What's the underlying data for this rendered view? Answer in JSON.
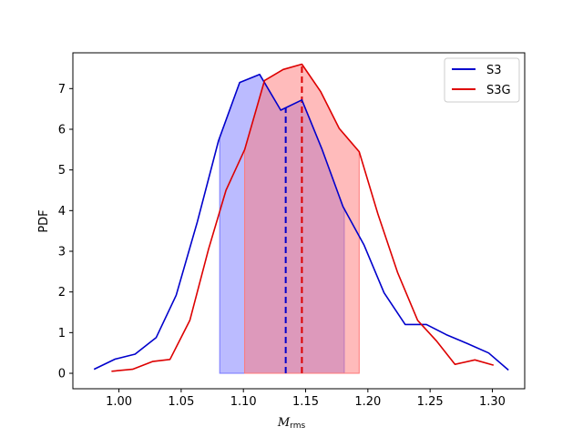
{
  "chart_data": {
    "type": "line",
    "title": "",
    "xlabel": "M",
    "xlabel_sub": "rms",
    "ylabel": "PDF",
    "xlim": [
      0.963,
      1.326
    ],
    "ylim": [
      -0.38,
      7.88
    ],
    "xticks": [
      1.0,
      1.05,
      1.1,
      1.15,
      1.2,
      1.25,
      1.3
    ],
    "yticks": [
      0,
      1,
      2,
      3,
      4,
      5,
      6,
      7
    ],
    "legend_position": "top-right",
    "series": [
      {
        "name": "S3",
        "color": "#0000cc",
        "fill_color": "#7777ff",
        "x": [
          0.98,
          0.997,
          1.013,
          1.03,
          1.046,
          1.063,
          1.08,
          1.097,
          1.113,
          1.13,
          1.147,
          1.163,
          1.18,
          1.197,
          1.213,
          1.23,
          1.247,
          1.263,
          1.28,
          1.297,
          1.313
        ],
        "y": [
          0.1,
          0.35,
          0.47,
          0.88,
          1.92,
          3.72,
          5.72,
          7.15,
          7.35,
          6.47,
          6.72,
          5.52,
          4.1,
          3.15,
          1.98,
          1.2,
          1.2,
          0.95,
          0.73,
          0.5,
          0.08
        ],
        "mean": 1.134,
        "shade_range": [
          1.081,
          1.181
        ]
      },
      {
        "name": "S3G",
        "color": "#dd0000",
        "fill_color": "#ff7777",
        "x": [
          0.994,
          1.011,
          1.027,
          1.041,
          1.057,
          1.072,
          1.086,
          1.101,
          1.117,
          1.132,
          1.147,
          1.162,
          1.177,
          1.193,
          1.208,
          1.224,
          1.24,
          1.255,
          1.27,
          1.286,
          1.301
        ],
        "y": [
          0.05,
          0.1,
          0.29,
          0.34,
          1.3,
          3.05,
          4.5,
          5.5,
          7.2,
          7.47,
          7.6,
          6.93,
          6.02,
          5.45,
          3.92,
          2.47,
          1.3,
          0.8,
          0.22,
          0.33,
          0.2
        ],
        "mean": 1.147,
        "shade_range": [
          1.101,
          1.193
        ]
      }
    ]
  }
}
